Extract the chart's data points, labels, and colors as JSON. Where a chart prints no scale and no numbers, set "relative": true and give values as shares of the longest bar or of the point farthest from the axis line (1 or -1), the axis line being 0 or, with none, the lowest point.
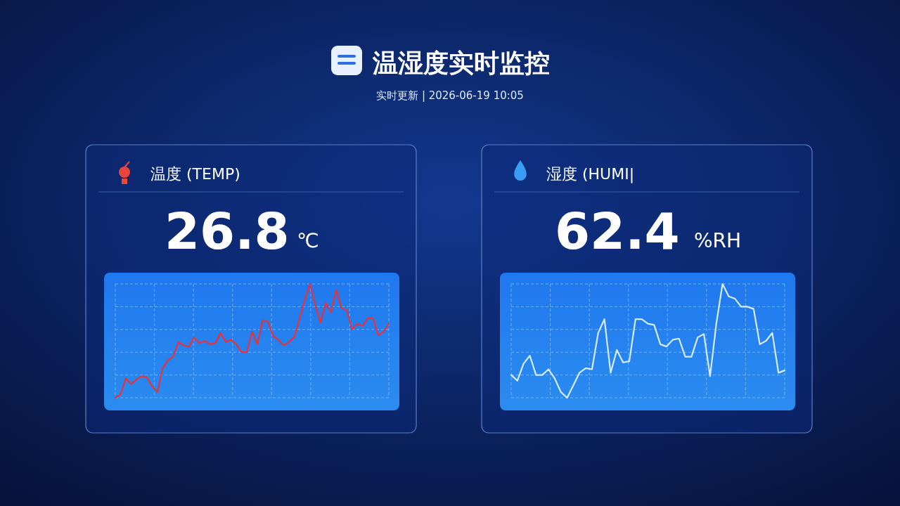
{
  "chart_data": [
    {
      "type": "other",
      "title": "温湿度实时监控",
      "subtitle": "实时更新 | 2026-06-19 10:05"
    },
    {
      "type": "line",
      "title": "温度 (TEMP)",
      "annotations": [
        "26.8",
        "℃"
      ],
      "relative": true,
      "grid": true,
      "categories": [
        null,
        null,
        null,
        null,
        null,
        null,
        null,
        null,
        null,
        null,
        null,
        null,
        null,
        null,
        null,
        null,
        null,
        null,
        null,
        null,
        null,
        null,
        null,
        null,
        null,
        null,
        null,
        null,
        null,
        null,
        null,
        null,
        null,
        null,
        null,
        null,
        null,
        null,
        null,
        null,
        null,
        null,
        null,
        null,
        null,
        null,
        null,
        null,
        null,
        null,
        null,
        null,
        null
      ],
      "series": [
        {
          "color": "#e8323c",
          "values": [
            0,
            0.03,
            0.17,
            0.12,
            0.16,
            0.19,
            0.18,
            0.1,
            0.05,
            0.26,
            0.33,
            0.36,
            0.49,
            0.46,
            0.45,
            0.53,
            0.48,
            0.5,
            0.47,
            0.48,
            0.57,
            0.49,
            0.51,
            0.47,
            0.4,
            0.4,
            0.58,
            0.47,
            0.68,
            0.67,
            0.54,
            0.51,
            0.46,
            0.49,
            0.53,
            0.69,
            0.86,
            1,
            0.82,
            0.66,
            0.83,
            0.75,
            0.95,
            0.79,
            0.77,
            0.6,
            0.65,
            0.63,
            0.7,
            0.7,
            0.55,
            0.58,
            0.65
          ]
        }
      ]
    },
    {
      "type": "line",
      "title": "湿度 (HUMI|",
      "annotations": [
        "62.4",
        "%RH"
      ],
      "relative": true,
      "grid": true,
      "categories": [
        null,
        null,
        null,
        null,
        null,
        null,
        null,
        null,
        null,
        null,
        null,
        null,
        null,
        null,
        null,
        null,
        null,
        null,
        null,
        null,
        null,
        null,
        null,
        null,
        null,
        null,
        null,
        null,
        null,
        null,
        null,
        null,
        null,
        null,
        null,
        null,
        null,
        null,
        null,
        null,
        null,
        null,
        null,
        null,
        null
      ],
      "series": [
        {
          "color": "#d6ebff",
          "values": [
            0.2,
            0.15,
            0.3,
            0.37,
            0.2,
            0.2,
            0.25,
            0.17,
            0.05,
            0,
            0.11,
            0.22,
            0.26,
            0.25,
            0.57,
            0.69,
            0.22,
            0.42,
            0.31,
            0.32,
            0.69,
            0.69,
            0.65,
            0.64,
            0.47,
            0.45,
            0.51,
            0.52,
            0.36,
            0.36,
            0.53,
            0.56,
            0.19,
            0.65,
            1,
            0.89,
            0.87,
            0.8,
            0.8,
            0.78,
            0.47,
            0.5,
            0.57,
            0.22,
            0.24
          ]
        }
      ]
    }
  ]
}
